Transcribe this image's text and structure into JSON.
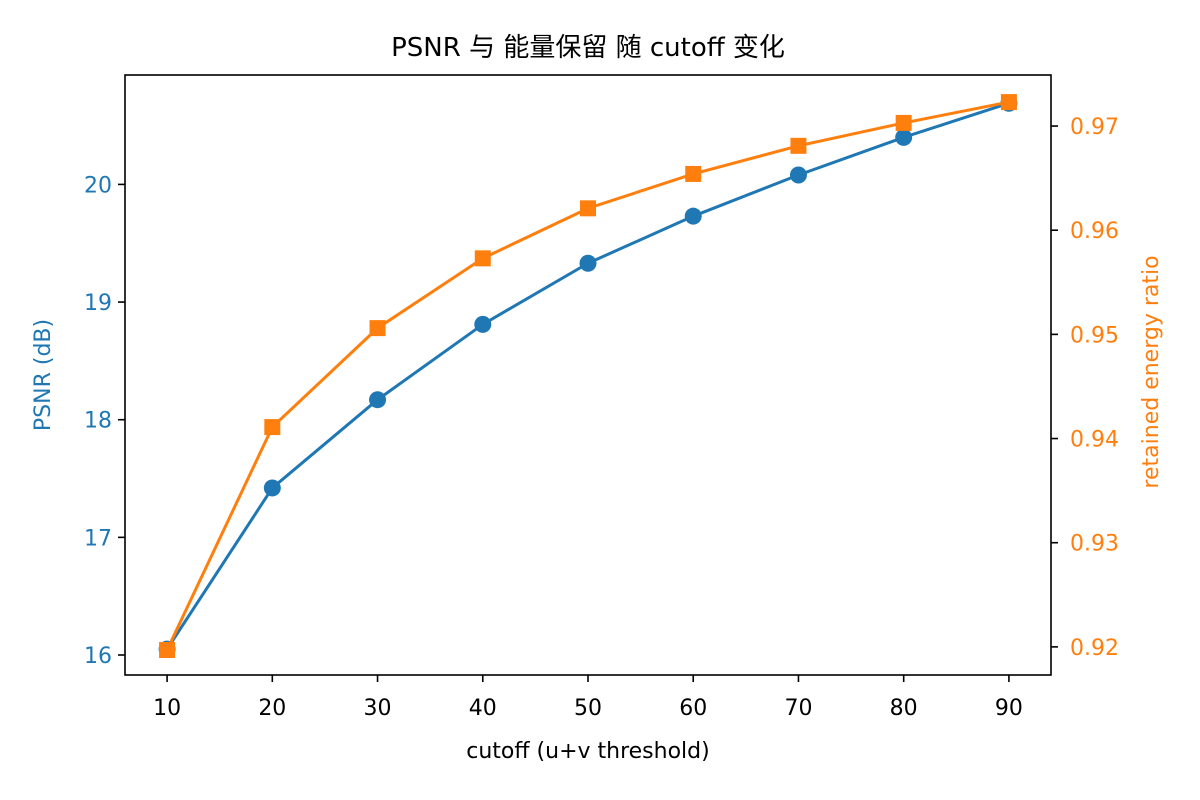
{
  "chart_data": {
    "type": "line",
    "title": "PSNR 与 能量保留 随 cutoff 变化",
    "xlabel": "cutoff (u+v threshold)",
    "ylabel_left": "PSNR (dB)",
    "ylabel_right": "retained energy ratio",
    "x": [
      10,
      20,
      30,
      40,
      50,
      60,
      70,
      80,
      90
    ],
    "x_ticks": [
      "10",
      "20",
      "30",
      "40",
      "50",
      "60",
      "70",
      "80",
      "90"
    ],
    "xlim": [
      6,
      94
    ],
    "y_left_ticks": [
      "16",
      "17",
      "18",
      "19",
      "20"
    ],
    "ylim_left": [
      15.83,
      20.93
    ],
    "y_right_ticks": [
      "0.92",
      "0.93",
      "0.94",
      "0.95",
      "0.96",
      "0.97"
    ],
    "ylim_right": [
      0.9173,
      0.9749
    ],
    "grid": false,
    "series": [
      {
        "axis": "left",
        "marker": "circle",
        "color": "#1f77b4",
        "values": [
          16.05,
          17.42,
          18.17,
          18.81,
          19.33,
          19.73,
          20.08,
          20.4,
          20.69
        ]
      },
      {
        "axis": "right",
        "marker": "square",
        "color": "#ff7f0e",
        "values": [
          0.9197,
          0.9411,
          0.9506,
          0.9573,
          0.9621,
          0.9654,
          0.9681,
          0.9703,
          0.9723
        ]
      }
    ]
  }
}
